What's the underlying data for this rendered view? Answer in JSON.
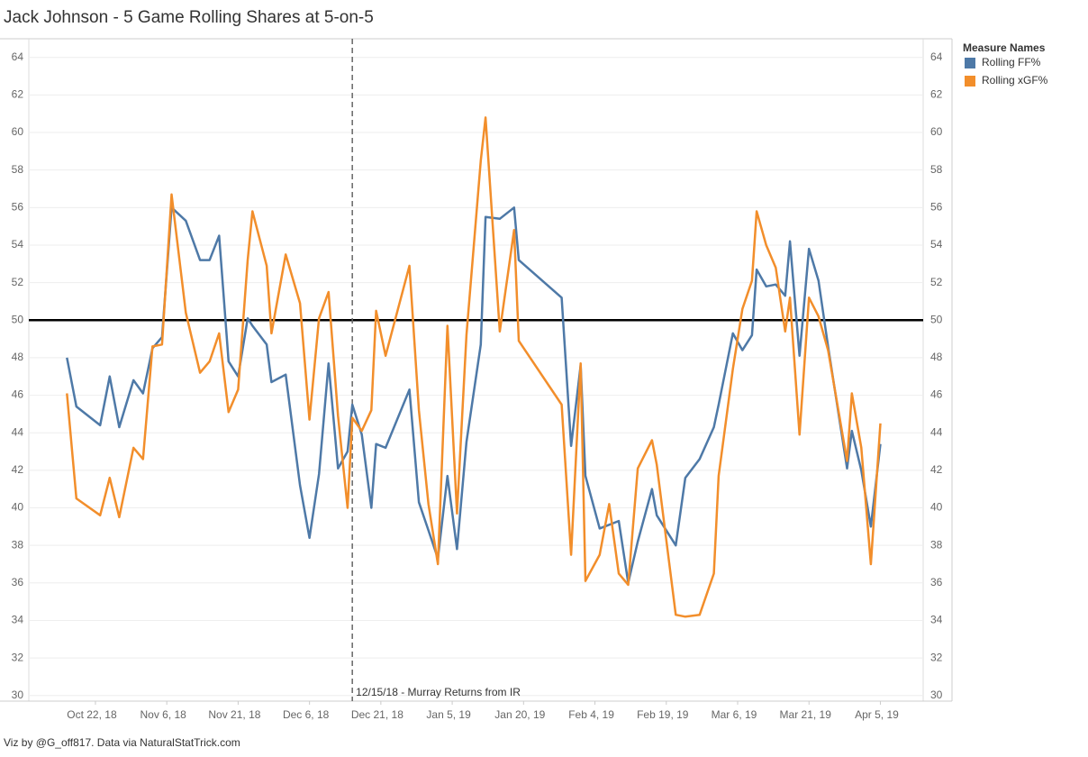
{
  "chart_data": {
    "type": "line",
    "title": "Jack Johnson - 5 Game Rolling Shares at 5-on-5",
    "footer": "Viz by @G_off817.  Data via NaturalStatTrick.com",
    "legend_title": "Measure Names",
    "legend_position": "right",
    "grid": true,
    "reference_line": 50,
    "annotation": {
      "x": "2018-12-15",
      "label": "12/15/18 - Murray Returns from IR"
    },
    "xlim": [
      "2018-10-08",
      "2019-04-14"
    ],
    "xticks": [
      {
        "value": "2018-10-22",
        "label": "Oct 22, 18"
      },
      {
        "value": "2018-11-06",
        "label": "Nov 6, 18"
      },
      {
        "value": "2018-11-21",
        "label": "Nov 21, 18"
      },
      {
        "value": "2018-12-06",
        "label": "Dec 6, 18"
      },
      {
        "value": "2018-12-21",
        "label": "Dec 21, 18"
      },
      {
        "value": "2019-01-05",
        "label": "Jan 5, 19"
      },
      {
        "value": "2019-01-20",
        "label": "Jan 20, 19"
      },
      {
        "value": "2019-02-04",
        "label": "Feb 4, 19"
      },
      {
        "value": "2019-02-19",
        "label": "Feb 19, 19"
      },
      {
        "value": "2019-03-06",
        "label": "Mar 6, 19"
      },
      {
        "value": "2019-03-21",
        "label": "Mar 21, 19"
      },
      {
        "value": "2019-04-05",
        "label": "Apr 5, 19"
      }
    ],
    "ylim": [
      29.7,
      64.9
    ],
    "yticks": [
      30,
      32,
      34,
      36,
      38,
      40,
      42,
      44,
      46,
      48,
      50,
      52,
      54,
      56,
      58,
      60,
      62,
      64
    ],
    "x": [
      "2018-10-16",
      "2018-10-18",
      "2018-10-23",
      "2018-10-25",
      "2018-10-27",
      "2018-10-30",
      "2018-11-01",
      "2018-11-03",
      "2018-11-05",
      "2018-11-07",
      "2018-11-10",
      "2018-11-13",
      "2018-11-15",
      "2018-11-17",
      "2018-11-19",
      "2018-11-21",
      "2018-11-23",
      "2018-11-24",
      "2018-11-27",
      "2018-11-28",
      "2018-12-01",
      "2018-12-04",
      "2018-12-06",
      "2018-12-08",
      "2018-12-10",
      "2018-12-12",
      "2018-12-14",
      "2018-12-15",
      "2018-12-17",
      "2018-12-19",
      "2018-12-20",
      "2018-12-22",
      "2018-12-27",
      "2018-12-29",
      "2018-12-31",
      "2019-01-02",
      "2019-01-04",
      "2019-01-06",
      "2019-01-08",
      "2019-01-11",
      "2019-01-12",
      "2019-01-15",
      "2019-01-18",
      "2019-01-19",
      "2019-01-28",
      "2019-01-30",
      "2019-02-01",
      "2019-02-02",
      "2019-02-05",
      "2019-02-07",
      "2019-02-09",
      "2019-02-11",
      "2019-02-13",
      "2019-02-16",
      "2019-02-17",
      "2019-02-21",
      "2019-02-23",
      "2019-02-26",
      "2019-03-01",
      "2019-03-02",
      "2019-03-05",
      "2019-03-07",
      "2019-03-09",
      "2019-03-10",
      "2019-03-12",
      "2019-03-14",
      "2019-03-16",
      "2019-03-17",
      "2019-03-19",
      "2019-03-21",
      "2019-03-23",
      "2019-03-25",
      "2019-03-29",
      "2019-03-30",
      "2019-04-01",
      "2019-04-03",
      "2019-04-05"
    ],
    "series": [
      {
        "name": "Rolling FF%",
        "color": "#4e79a7",
        "values": [
          48.0,
          45.4,
          44.4,
          47.0,
          44.3,
          46.8,
          46.1,
          48.5,
          49.1,
          56.0,
          55.3,
          53.2,
          53.2,
          54.5,
          47.8,
          47.0,
          50.1,
          49.7,
          48.7,
          46.7,
          47.1,
          41.2,
          38.4,
          41.8,
          47.7,
          42.1,
          43.0,
          45.5,
          43.9,
          40.0,
          43.4,
          43.2,
          46.3,
          40.3,
          38.8,
          37.3,
          41.7,
          37.8,
          43.5,
          48.7,
          55.5,
          55.4,
          56.0,
          53.2,
          51.2,
          43.3,
          47.6,
          41.7,
          38.9,
          39.1,
          39.3,
          36.0,
          38.2,
          41.0,
          39.6,
          38.0,
          41.6,
          42.6,
          44.3,
          45.5,
          49.3,
          48.4,
          49.2,
          52.7,
          51.8,
          51.9,
          51.3,
          54.2,
          48.1,
          53.8,
          52.1,
          48.6,
          42.1,
          44.1,
          42.0,
          39.0,
          43.4
        ]
      },
      {
        "name": "Rolling xGF%",
        "color": "#f28e2b",
        "values": [
          46.1,
          40.5,
          39.6,
          41.6,
          39.5,
          43.2,
          42.6,
          48.6,
          48.7,
          56.7,
          50.4,
          47.2,
          47.8,
          49.3,
          45.1,
          46.3,
          53.2,
          55.8,
          52.9,
          49.3,
          53.5,
          50.9,
          44.7,
          50.1,
          51.5,
          44.9,
          40.0,
          44.8,
          44.1,
          45.2,
          50.5,
          48.1,
          52.9,
          45.2,
          40.2,
          37.0,
          49.7,
          39.7,
          49.2,
          58.5,
          60.8,
          49.4,
          54.8,
          48.9,
          45.5,
          37.5,
          47.7,
          36.1,
          37.5,
          40.2,
          36.5,
          35.9,
          42.1,
          43.6,
          42.3,
          34.3,
          34.2,
          34.3,
          36.5,
          41.7,
          47.4,
          50.6,
          52.1,
          55.8,
          54.0,
          52.8,
          49.4,
          51.2,
          43.9,
          51.2,
          50.2,
          48.4,
          42.5,
          46.1,
          43.2,
          37.0,
          44.5
        ]
      }
    ]
  }
}
